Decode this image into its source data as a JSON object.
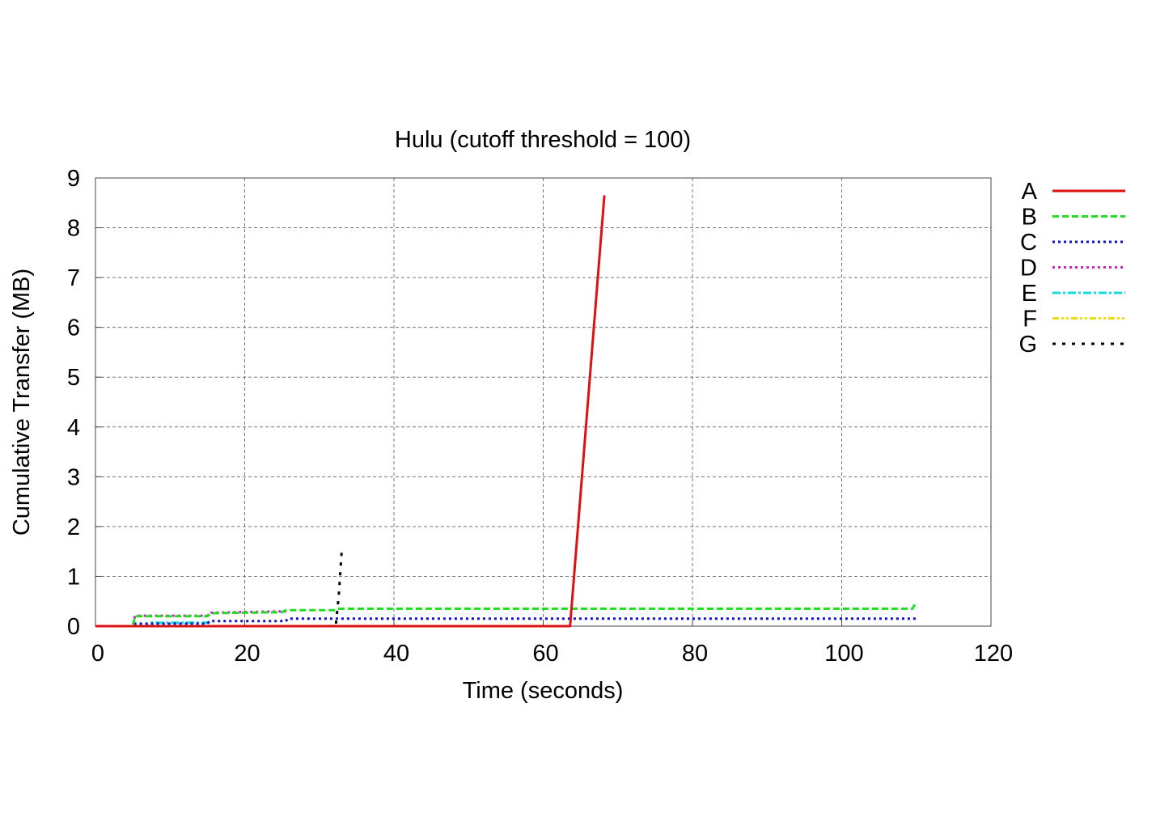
{
  "chart_data": {
    "type": "line",
    "title": "Hulu (cutoff threshold = 100)",
    "xlabel": "Time (seconds)",
    "ylabel": "Cumulative Transfer (MB)",
    "xlim": [
      0,
      120
    ],
    "ylim": [
      0,
      9
    ],
    "xticks": [
      0,
      20,
      40,
      60,
      80,
      100,
      120
    ],
    "yticks": [
      0,
      1,
      2,
      3,
      4,
      5,
      6,
      7,
      8,
      9
    ],
    "grid": true,
    "legend_position": "right",
    "series": [
      {
        "name": "A",
        "color": "#dd1111",
        "dash": "solid",
        "x": [
          0,
          63.6,
          68.2
        ],
        "y": [
          0,
          0,
          8.65
        ]
      },
      {
        "name": "B",
        "color": "#22dd22",
        "dash": "dashed",
        "x": [
          0,
          5,
          5.3,
          15,
          15.5,
          25,
          25.5,
          32,
          32.5,
          109.5,
          109.8,
          110
        ],
        "y": [
          0,
          0,
          0.2,
          0.2,
          0.26,
          0.28,
          0.32,
          0.32,
          0.35,
          0.35,
          0.44,
          0.46
        ]
      },
      {
        "name": "C",
        "color": "#1111cc",
        "dash": "dotted",
        "x": [
          0,
          5,
          5.3,
          15,
          15.3,
          25.5,
          25.8,
          110
        ],
        "y": [
          0,
          0,
          0.05,
          0.05,
          0.1,
          0.1,
          0.15,
          0.15
        ]
      },
      {
        "name": "D",
        "color": "#cc22cc",
        "dash": "dotted",
        "x": [
          0,
          5,
          5.3,
          15,
          15.5,
          26
        ],
        "y": [
          0,
          0,
          0.21,
          0.21,
          0.27,
          0.3
        ]
      },
      {
        "name": "E",
        "color": "#11dddd",
        "dash": "dashdot",
        "x": [
          0,
          7,
          7.5,
          15,
          15.5
        ],
        "y": [
          0,
          0,
          0.07,
          0.07,
          0.1
        ]
      },
      {
        "name": "F",
        "color": "#eedd11",
        "dash": "dashdotdot",
        "x": [
          0,
          31,
          32
        ],
        "y": [
          0,
          0,
          0.01
        ]
      },
      {
        "name": "G",
        "color": "#000000",
        "dash": "longdot",
        "x": [
          0,
          32.2,
          32.6,
          33
        ],
        "y": [
          0,
          0,
          0.6,
          1.5
        ]
      }
    ]
  }
}
